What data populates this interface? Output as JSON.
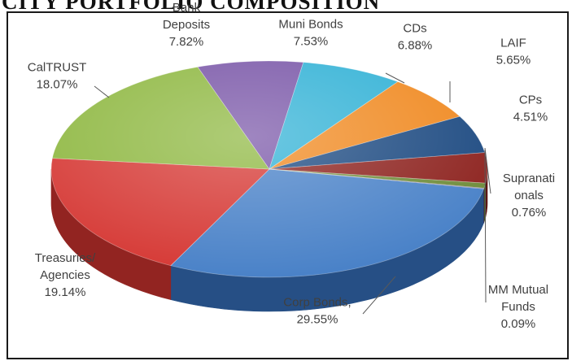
{
  "title": "CITY PORTFOLIO COMPOSITION",
  "chart_data": {
    "type": "pie",
    "title": "CITY PORTFOLIO COMPOSITION",
    "legend": "none",
    "slices": [
      {
        "name": "Corp Bonds",
        "value": 29.55,
        "label": "Corp Bonds,",
        "value_label": "29.55%",
        "color": "#4a82c8",
        "side": "#264f85"
      },
      {
        "name": "Treasuries/ Agencies",
        "value": 19.14,
        "label": "Treasuries/ Agencies",
        "value_label": "19.14%",
        "color": "#d63a36",
        "side": "#922421"
      },
      {
        "name": "CalTRUST",
        "value": 18.07,
        "label": "CalTRUST",
        "value_label": "18.07%",
        "color": "#8fb842",
        "side": "#5c7c26"
      },
      {
        "name": "Bank Deposits",
        "value": 7.82,
        "label": "Bank Deposits",
        "value_label": "7.82%",
        "color": "#7a57a8",
        "side": "#4f3473"
      },
      {
        "name": "Muni Bonds",
        "value": 7.53,
        "label": "Muni Bonds",
        "value_label": "7.53%",
        "color": "#33b2d6",
        "side": "#1d7a96"
      },
      {
        "name": "CDs",
        "value": 6.88,
        "label": "CDs",
        "value_label": "6.88%",
        "color": "#f08a22",
        "side": "#a95b0f"
      },
      {
        "name": "LAIF",
        "value": 5.65,
        "label": "LAIF",
        "value_label": "5.65%",
        "color": "#1e4b82",
        "side": "#112d52"
      },
      {
        "name": "CPs",
        "value": 4.51,
        "label": "CPs",
        "value_label": "4.51%",
        "color": "#8e2420",
        "side": "#5a1512"
      },
      {
        "name": "Supranationals",
        "value": 0.76,
        "label": "Supranati onals",
        "value_label": "0.76%",
        "color": "#6f8c3a",
        "side": "#46591f"
      },
      {
        "name": "MM Mutual Funds",
        "value": 0.09,
        "label": "MM Mutual Funds",
        "value_label": "0.09%",
        "color": "#5b4a82",
        "side": "#3a2e55"
      }
    ]
  }
}
